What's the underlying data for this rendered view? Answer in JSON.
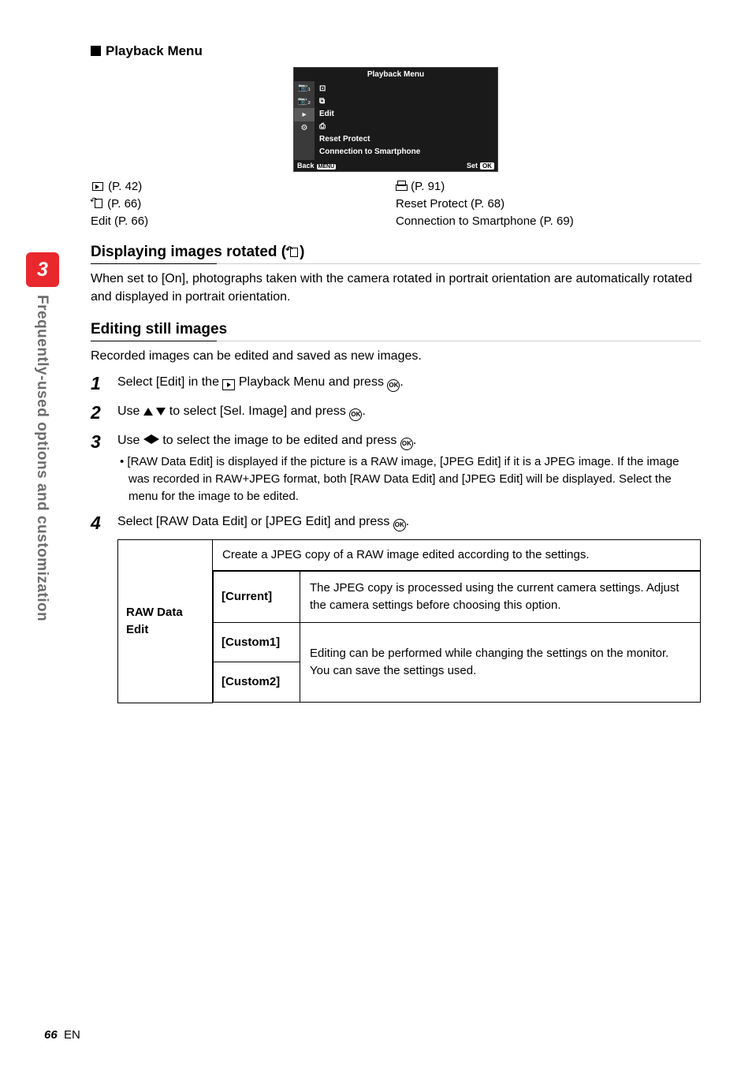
{
  "sideTab": {
    "number": "3",
    "label": "Frequently-used options and customization"
  },
  "sectionTitle": "Playback Menu",
  "menuScreen": {
    "title": "Playback Menu",
    "sideIcons": [
      "📷₁",
      "📷₂",
      "▸",
      "⚙"
    ],
    "items": [
      "⊡",
      "⧉",
      "Edit",
      "⎙",
      "Reset Protect",
      "Connection to Smartphone"
    ],
    "back": "Back",
    "backBtn": "MENU",
    "set": "Set",
    "setBtn": "OK"
  },
  "refs": {
    "left": [
      {
        "icon": "slide",
        "text": " (P. 42)"
      },
      {
        "icon": "rot",
        "text": " (P. 66)"
      },
      {
        "icon": "",
        "text": "Edit (P. 66)"
      }
    ],
    "right": [
      {
        "icon": "print",
        "text": " (P. 91)"
      },
      {
        "icon": "",
        "text": "Reset Protect (P. 68)"
      },
      {
        "icon": "",
        "text": "Connection to Smartphone (P. 69)"
      }
    ]
  },
  "h2a": {
    "pre": "Displaying images rotated (",
    "post": ")"
  },
  "para1": "When set to [On], photographs taken with the camera rotated in portrait orientation are automatically rotated and displayed in portrait orientation.",
  "h2b": "Editing still images",
  "para2": "Recorded images can be edited and saved as new images.",
  "steps": {
    "s1a": "Select [Edit] in the ",
    "s1b": " Playback Menu and press ",
    "s1c": ".",
    "s2a": "Use ",
    "s2b": " to select [Sel. Image] and press ",
    "s2c": ".",
    "s3a": "Use ",
    "s3b": " to select the image to be edited and press ",
    "s3c": ".",
    "s3bullet": "[RAW Data Edit] is displayed if the picture is a RAW image, [JPEG Edit] if it is a JPEG image. If the image was recorded in RAW+JPEG format, both [RAW Data Edit] and [JPEG Edit] will be displayed. Select the menu for the image to be edited.",
    "s4a": "Select [RAW Data Edit] or [JPEG Edit] and press ",
    "s4b": "."
  },
  "table": {
    "rowHead": "RAW Data Edit",
    "topDesc": "Create a JPEG copy of a RAW image edited according to the settings.",
    "r1": {
      "label": "[Current]",
      "desc": "The JPEG copy is processed using the current camera settings. Adjust the camera settings before choosing this option."
    },
    "r2": {
      "label": "[Custom1]"
    },
    "r3": {
      "label": "[Custom2]"
    },
    "mergedDesc": "Editing can be performed while changing the settings on the monitor. You can save the settings used."
  },
  "footer": {
    "num": "66",
    "lang": "EN"
  }
}
